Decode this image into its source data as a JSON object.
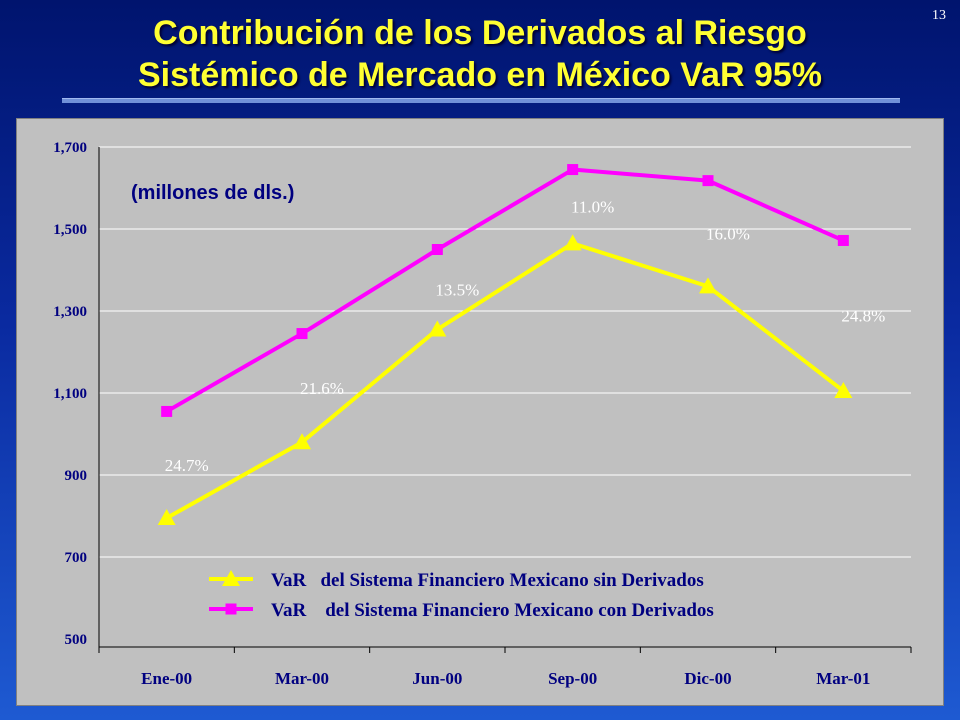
{
  "slide_number": "13",
  "title_line1": "Contribución de los Derivados al Riesgo",
  "title_line2": "Sistémico de Mercado en México VaR 95%",
  "chart_data": {
    "type": "line",
    "subtitle": "(millones de dls.)",
    "categories": [
      "Ene-00",
      "Mar-00",
      "Jun-00",
      "Sep-00",
      "Dic-00",
      "Mar-01"
    ],
    "y_ticks": [
      "1,700",
      "1,500",
      "1,300",
      "1,100",
      "900",
      "700",
      "500"
    ],
    "ylim": [
      500,
      1700
    ],
    "grid": true,
    "legend_position": "bottom",
    "series": [
      {
        "name": "VaR   del Sistema Financiero Mexicano sin Derivados",
        "marker": "triangle",
        "color": "#ffff00",
        "values": [
          795,
          980,
          1255,
          1465,
          1360,
          1105
        ]
      },
      {
        "name": "VaR    del Sistema Financiero Mexicano con Derivados",
        "marker": "square",
        "color": "#ff00ff",
        "values": [
          1055,
          1245,
          1450,
          1645,
          1618,
          1472
        ]
      }
    ],
    "annotations": [
      "24.7%",
      "21.6%",
      "13.5%",
      "11.0%",
      "16.0%",
      "24.8%"
    ]
  }
}
